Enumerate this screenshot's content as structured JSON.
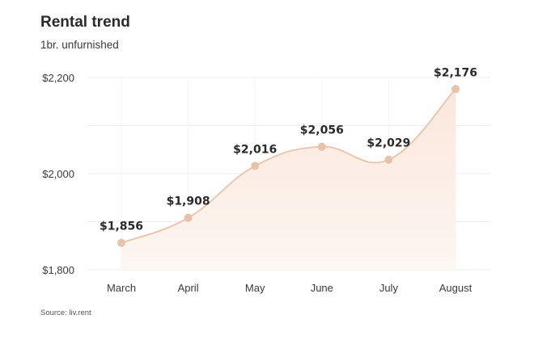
{
  "header": {
    "title": "Rental trend",
    "subtitle": "1br. unfurnished"
  },
  "footer": {
    "source": "Source: liv.rent"
  },
  "colors": {
    "line": "#ecc6ad",
    "point": "#e8c2a9",
    "area_top": "#fbe7dc",
    "area_bottom": "#fdf6f2",
    "grid": "#eeeeee"
  },
  "chart_data": {
    "type": "area",
    "categories": [
      "March",
      "April",
      "May",
      "June",
      "July",
      "August"
    ],
    "values": [
      1856,
      1908,
      2016,
      2056,
      2029,
      2176
    ],
    "data_labels": [
      "$1,856",
      "$1,908",
      "$2,016",
      "$2,056",
      "$2,029",
      "$2,176"
    ],
    "y_ticks": [
      1800,
      2000,
      2200
    ],
    "y_tick_labels": [
      "$1,800",
      "$2,000",
      "$2,200"
    ],
    "ylim": [
      1800,
      2200
    ],
    "grid": true,
    "title": "Rental trend",
    "subtitle": "1br. unfurnished"
  }
}
